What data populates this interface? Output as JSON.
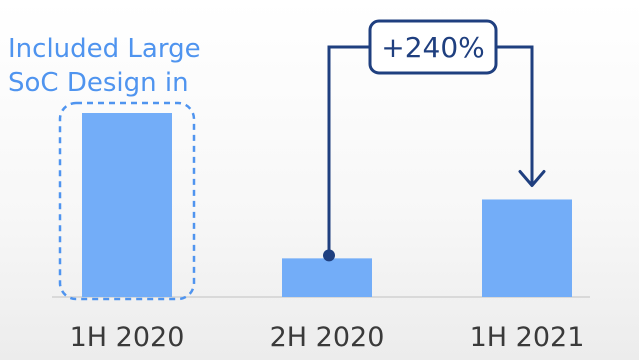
{
  "chart_data": {
    "type": "bar",
    "categories": [
      "1H 2020",
      "2H 2020",
      "1H 2021"
    ],
    "values": [
      100,
      21,
      53
    ],
    "ylim": [
      0,
      100
    ],
    "grid": false,
    "annotations": {
      "growth_label": "+240%",
      "note_line1": "Included Large",
      "note_line2": "SoC Design in"
    },
    "colors": {
      "bar": "#73adf8",
      "accent": "#4f94ef",
      "arrow": "#1f3f7f",
      "axis": "#d9d9d9",
      "tick_text": "#3a3a3a"
    }
  }
}
